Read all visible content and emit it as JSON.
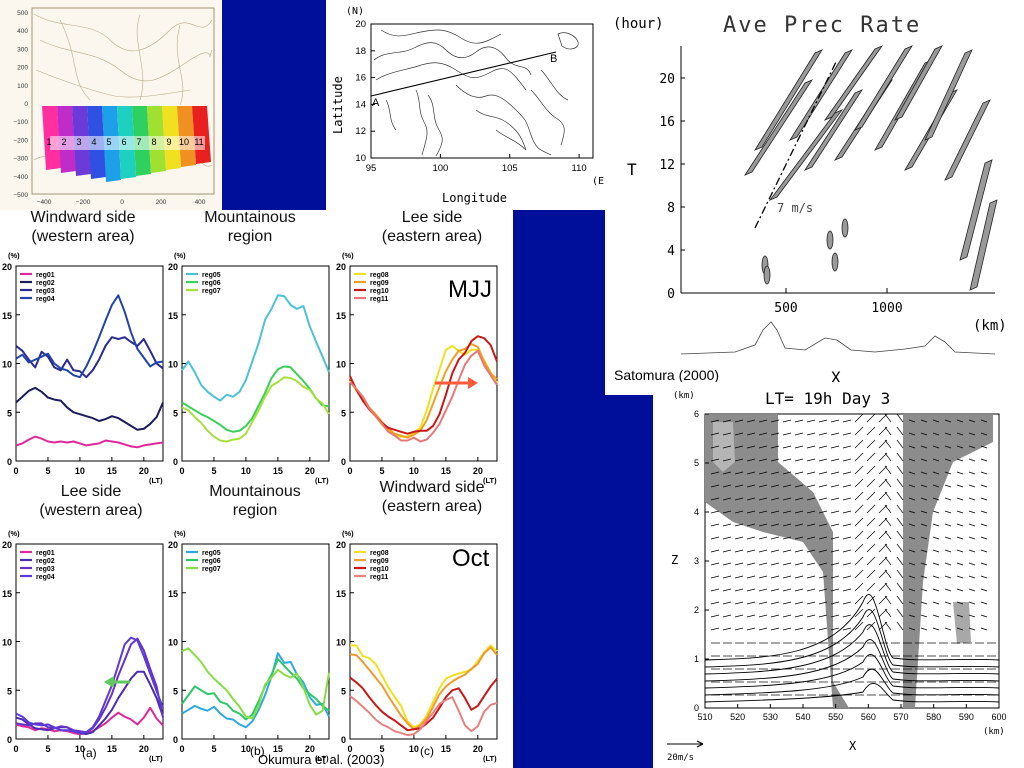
{
  "captions": {
    "row1": [
      "Windward side\n(western area)",
      "Mountainous\nregion",
      "Lee side\n(eastern area)"
    ],
    "row2": [
      "Lee side\n(western area)",
      "Mountainous\nregion",
      "Windward side\n(eastern area)"
    ],
    "season1": "MJJ",
    "season2": "Oct",
    "panel_labels": [
      "(a)",
      "(b)",
      "(c)"
    ],
    "ref_okumura": "Okumura et al. (2003)",
    "ref_satomura": "Satomura (2000)"
  },
  "colors": {
    "blue_bg": "#000f99",
    "arrow": "#ff5a3c",
    "green_arrow": "#5fc85f"
  },
  "region_map": {
    "y_ticks": [
      "500",
      "400",
      "300",
      "200",
      "100",
      "0",
      "−100",
      "−200",
      "−300",
      "−400",
      "−500"
    ],
    "x_ticks": [
      "−400",
      "−200",
      "0",
      "200",
      "400"
    ],
    "regions": [
      "1",
      "2",
      "3",
      "4",
      "5",
      "6",
      "7",
      "8",
      "9",
      "10",
      "11"
    ]
  },
  "topo_map": {
    "ylabel": "Latitude",
    "xlabel": "Longitude",
    "north": "(N)",
    "east": "(E)",
    "y_ticks": [
      "20",
      "18",
      "16",
      "14",
      "12",
      "10"
    ],
    "x_ticks": [
      "95",
      "100",
      "105",
      "110"
    ],
    "point_a": "A",
    "point_b": "B"
  },
  "hovmoller": {
    "title": "Ave Prec Rate",
    "yunit": "(hour)",
    "ylabel": "T",
    "xunit": "(km)",
    "xlabel": "X",
    "y_ticks": [
      "20",
      "16",
      "12",
      "8",
      "4",
      "0"
    ],
    "x_ticks": [
      "500",
      "1000"
    ],
    "speed": "7 m/s"
  },
  "cross_section": {
    "title": "LT= 19h Day 3",
    "yunit": "(km)",
    "ylabel": "Z",
    "xunit": "(km)",
    "xlabel": "X",
    "y_ticks": [
      "6",
      "5",
      "4",
      "3",
      "2",
      "1",
      "0"
    ],
    "x_ticks": [
      "510",
      "520",
      "530",
      "540",
      "550",
      "560",
      "570",
      "580",
      "590",
      "600"
    ],
    "vector_scale": "20m/s"
  },
  "chart_data": [
    {
      "type": "line",
      "panel": "MJJ-a",
      "ylabel": "(%)",
      "xlabel": "(LT)",
      "ylim": [
        0,
        20
      ],
      "xlim": [
        0,
        23
      ],
      "x_ticks": [
        0,
        5,
        10,
        15,
        20
      ],
      "y_ticks": [
        0,
        5,
        10,
        15,
        20
      ],
      "x": [
        0,
        1,
        2,
        3,
        4,
        5,
        6,
        7,
        8,
        9,
        10,
        11,
        12,
        13,
        14,
        15,
        16,
        17,
        18,
        19,
        20,
        21,
        22,
        23
      ],
      "series": [
        {
          "name": "reg01",
          "color": "#e0289b",
          "values": [
            1.6,
            1.8,
            2.2,
            2.5,
            2.3,
            2.0,
            1.9,
            2.0,
            1.9,
            2.0,
            1.8,
            1.6,
            1.7,
            1.8,
            2.1,
            2.0,
            1.9,
            1.7,
            1.5,
            1.4,
            1.6,
            1.7,
            1.8,
            1.9
          ]
        },
        {
          "name": "reg02",
          "color": "#1b1b5e",
          "values": [
            6.0,
            6.6,
            7.2,
            7.5,
            7.1,
            6.5,
            6.3,
            6.2,
            5.5,
            5.0,
            4.8,
            4.6,
            4.4,
            4.1,
            4.3,
            4.6,
            4.4,
            4.0,
            3.6,
            3.2,
            3.3,
            3.8,
            4.5,
            6.0
          ]
        },
        {
          "name": "reg03",
          "color": "#2a2a8f",
          "values": [
            11.8,
            11.3,
            10.4,
            9.6,
            11.2,
            10.7,
            9.6,
            9.3,
            10.4,
            9.3,
            9.2,
            8.6,
            9.3,
            10.4,
            11.8,
            12.7,
            12.5,
            12.7,
            12.2,
            11.8,
            12.5,
            11.3,
            10.0,
            9.5
          ]
        },
        {
          "name": "reg04",
          "color": "#2244aa",
          "values": [
            10.5,
            10.9,
            10.1,
            10.4,
            10.7,
            11.0,
            10.0,
            9.5,
            9.3,
            8.8,
            8.6,
            9.7,
            11.1,
            12.7,
            14.4,
            16.0,
            17.0,
            15.3,
            13.2,
            11.5,
            10.6,
            9.7,
            10.1,
            10.2
          ]
        }
      ]
    },
    {
      "type": "line",
      "panel": "MJJ-b",
      "ylabel": "(%)",
      "xlabel": "(LT)",
      "ylim": [
        0,
        20
      ],
      "xlim": [
        0,
        23
      ],
      "x_ticks": [
        0,
        5,
        10,
        15,
        20
      ],
      "y_ticks": [
        0,
        5,
        10,
        15,
        20
      ],
      "x": [
        0,
        1,
        2,
        3,
        4,
        5,
        6,
        7,
        8,
        9,
        10,
        11,
        12,
        13,
        14,
        15,
        16,
        17,
        18,
        19,
        20,
        21,
        22,
        23
      ],
      "series": [
        {
          "name": "reg05",
          "color": "#4cc2d6",
          "values": [
            9.3,
            10.2,
            9.1,
            7.8,
            7.1,
            6.6,
            6.2,
            6.8,
            6.6,
            7.1,
            8.3,
            10.2,
            12.1,
            14.5,
            15.6,
            17.0,
            16.9,
            16.0,
            15.6,
            15.9,
            13.8,
            12.2,
            10.7,
            9.1
          ]
        },
        {
          "name": "reg06",
          "color": "#3ccf5a",
          "values": [
            6.0,
            5.6,
            5.2,
            4.8,
            4.5,
            4.1,
            3.7,
            3.2,
            3.0,
            3.1,
            3.6,
            4.4,
            5.7,
            7.0,
            8.5,
            9.4,
            9.7,
            9.6,
            8.9,
            8.2,
            7.4,
            6.4,
            5.7,
            5.6
          ]
        },
        {
          "name": "reg07",
          "color": "#a8e040",
          "values": [
            5.5,
            5.2,
            4.5,
            3.9,
            3.1,
            2.5,
            2.1,
            2.0,
            2.2,
            2.3,
            2.8,
            4.0,
            5.2,
            6.6,
            7.7,
            8.1,
            8.6,
            8.5,
            8.2,
            7.6,
            7.3,
            6.4,
            5.9,
            4.8
          ]
        }
      ]
    },
    {
      "type": "line",
      "panel": "MJJ-c",
      "ylabel": "(%)",
      "xlabel": "(LT)",
      "ylim": [
        0,
        20
      ],
      "xlim": [
        0,
        23
      ],
      "x_ticks": [
        0,
        5,
        10,
        15,
        20
      ],
      "y_ticks": [
        0,
        5,
        10,
        15,
        20
      ],
      "x": [
        0,
        1,
        2,
        3,
        4,
        5,
        6,
        7,
        8,
        9,
        10,
        11,
        12,
        13,
        14,
        15,
        16,
        17,
        18,
        19,
        20,
        21,
        22,
        23
      ],
      "series": [
        {
          "name": "reg08",
          "color": "#f0e020",
          "values": [
            8.2,
            7.2,
            6.4,
            5.3,
            4.6,
            3.7,
            3.1,
            2.6,
            2.5,
            2.5,
            2.9,
            3.4,
            5.2,
            7.4,
            9.4,
            11.4,
            11.8,
            11.3,
            10.9,
            11.4,
            11.4,
            10.3,
            9.1,
            8.0
          ]
        },
        {
          "name": "reg09",
          "color": "#f0a020",
          "values": [
            8.6,
            7.3,
            6.6,
            5.5,
            4.8,
            4.0,
            3.3,
            2.8,
            2.6,
            2.4,
            2.7,
            3.1,
            4.2,
            5.9,
            7.6,
            9.2,
            10.4,
            11.3,
            11.5,
            12.0,
            11.7,
            10.2,
            9.0,
            8.4
          ]
        },
        {
          "name": "reg10",
          "color": "#c81818",
          "values": [
            8.7,
            7.3,
            6.2,
            5.3,
            4.6,
            3.9,
            3.4,
            3.2,
            3.0,
            2.8,
            3.0,
            3.1,
            3.1,
            3.6,
            4.8,
            6.8,
            9.0,
            10.4,
            11.1,
            12.3,
            12.8,
            12.6,
            11.9,
            10.2
          ]
        },
        {
          "name": "reg11",
          "color": "#e87878",
          "values": [
            8.1,
            7.4,
            6.6,
            5.4,
            4.6,
            3.8,
            3.0,
            2.6,
            2.1,
            2.1,
            2.4,
            2.0,
            2.2,
            2.9,
            3.8,
            5.2,
            6.6,
            8.3,
            9.9,
            10.8,
            11.3,
            9.8,
            8.8,
            7.8
          ]
        }
      ]
    },
    {
      "type": "line",
      "panel": "Oct-a",
      "ylabel": "(%)",
      "xlabel": "(LT)",
      "ylim": [
        0,
        20
      ],
      "xlim": [
        0,
        23
      ],
      "x_ticks": [
        0,
        5,
        10,
        15,
        20
      ],
      "y_ticks": [
        0,
        5,
        10,
        15,
        20
      ],
      "x": [
        0,
        1,
        2,
        3,
        4,
        5,
        6,
        7,
        8,
        9,
        10,
        11,
        12,
        13,
        14,
        15,
        16,
        17,
        18,
        19,
        20,
        21,
        22,
        23
      ],
      "series": [
        {
          "name": "reg01",
          "color": "#e0289b",
          "values": [
            1.5,
            1.3,
            1.2,
            0.9,
            1.1,
            1.0,
            0.8,
            0.9,
            0.8,
            0.6,
            0.5,
            0.6,
            0.8,
            1.2,
            1.6,
            2.2,
            2.7,
            2.3,
            2.0,
            1.5,
            2.2,
            3.2,
            2.1,
            1.4
          ]
        },
        {
          "name": "reg02",
          "color": "#4b2bb0",
          "values": [
            2.2,
            2.0,
            1.5,
            1.1,
            1.0,
            0.9,
            1.1,
            1.2,
            1.2,
            0.8,
            0.6,
            0.5,
            0.7,
            1.4,
            2.1,
            3.0,
            4.2,
            5.2,
            6.2,
            6.9,
            6.9,
            5.6,
            4.2,
            2.3
          ]
        },
        {
          "name": "reg03",
          "color": "#6632c8",
          "values": [
            1.6,
            1.5,
            1.4,
            1.6,
            1.6,
            1.2,
            1.1,
            1.3,
            1.2,
            0.9,
            0.8,
            0.7,
            1.1,
            2.0,
            3.2,
            4.6,
            6.5,
            8.1,
            9.7,
            10.3,
            9.1,
            7.2,
            5.4,
            2.2
          ]
        },
        {
          "name": "reg04",
          "color": "#5a3ad8",
          "values": [
            2.6,
            2.3,
            1.7,
            1.5,
            1.4,
            1.5,
            1.2,
            0.9,
            0.9,
            0.8,
            0.6,
            0.7,
            1.2,
            2.3,
            3.9,
            5.5,
            7.6,
            9.7,
            10.4,
            10.1,
            8.5,
            6.7,
            4.9,
            3.2
          ]
        }
      ]
    },
    {
      "type": "line",
      "panel": "Oct-b",
      "ylabel": "(%)",
      "xlabel": "(LT)",
      "ylim": [
        0,
        20
      ],
      "xlim": [
        0,
        23
      ],
      "x_ticks": [
        0,
        5,
        10,
        15,
        20
      ],
      "y_ticks": [
        0,
        5,
        10,
        15,
        20
      ],
      "x": [
        0,
        1,
        2,
        3,
        4,
        5,
        6,
        7,
        8,
        9,
        10,
        11,
        12,
        13,
        14,
        15,
        16,
        17,
        18,
        19,
        20,
        21,
        22,
        23
      ],
      "series": [
        {
          "name": "reg05",
          "color": "#2ea8e0",
          "values": [
            2.6,
            3.0,
            3.4,
            3.1,
            2.9,
            3.3,
            2.6,
            2.1,
            2.0,
            1.5,
            1.2,
            1.8,
            3.0,
            4.5,
            6.4,
            8.8,
            7.8,
            7.9,
            6.6,
            5.8,
            4.3,
            3.5,
            3.6,
            2.3
          ]
        },
        {
          "name": "reg06",
          "color": "#2ac86a",
          "values": [
            3.6,
            4.5,
            5.4,
            5.0,
            4.6,
            4.7,
            3.8,
            3.6,
            2.9,
            2.6,
            2.0,
            2.5,
            3.9,
            5.4,
            6.6,
            8.2,
            7.5,
            6.8,
            6.2,
            5.2,
            4.6,
            4.1,
            3.4,
            2.9
          ]
        },
        {
          "name": "reg07",
          "color": "#88dd44",
          "values": [
            9.0,
            9.3,
            8.6,
            7.9,
            6.9,
            6.2,
            5.6,
            5.0,
            4.1,
            3.3,
            2.3,
            2.1,
            3.4,
            5.6,
            6.3,
            7.1,
            6.6,
            6.3,
            6.7,
            5.3,
            3.5,
            2.5,
            2.9,
            6.8
          ]
        }
      ]
    },
    {
      "type": "line",
      "panel": "Oct-c",
      "ylabel": "(%)",
      "xlabel": "(LT)",
      "ylim": [
        0,
        20
      ],
      "xlim": [
        0,
        23
      ],
      "x_ticks": [
        0,
        5,
        10,
        15,
        20
      ],
      "y_ticks": [
        0,
        5,
        10,
        15,
        20
      ],
      "x": [
        0,
        1,
        2,
        3,
        4,
        5,
        6,
        7,
        8,
        9,
        10,
        11,
        12,
        13,
        14,
        15,
        16,
        17,
        18,
        19,
        20,
        21,
        22,
        23
      ],
      "series": [
        {
          "name": "reg08",
          "color": "#f0e020",
          "values": [
            9.6,
            9.6,
            8.5,
            8.3,
            7.7,
            6.5,
            5.3,
            4.3,
            3.4,
            1.8,
            1.2,
            1.5,
            2.4,
            3.8,
            5.2,
            6.2,
            6.5,
            6.7,
            6.9,
            7.1,
            8.0,
            8.9,
            9.6,
            9.0
          ]
        },
        {
          "name": "reg09",
          "color": "#f09a30",
          "values": [
            8.7,
            8.6,
            7.9,
            7.1,
            6.3,
            5.5,
            4.4,
            3.4,
            2.4,
            1.6,
            1.0,
            1.4,
            2.1,
            3.3,
            4.6,
            5.4,
            5.9,
            6.3,
            6.6,
            7.2,
            7.7,
            8.8,
            9.4,
            8.6
          ]
        },
        {
          "name": "reg10",
          "color": "#c81818",
          "values": [
            6.3,
            5.8,
            5.2,
            4.3,
            3.5,
            2.8,
            2.3,
            1.9,
            1.4,
            0.9,
            1.0,
            1.1,
            1.6,
            2.2,
            3.2,
            4.3,
            5.0,
            5.2,
            4.2,
            3.0,
            3.4,
            4.4,
            5.4,
            6.2
          ]
        },
        {
          "name": "reg11",
          "color": "#e88080",
          "values": [
            4.4,
            3.9,
            3.3,
            2.7,
            2.0,
            1.5,
            1.2,
            0.8,
            0.6,
            0.4,
            0.5,
            1.0,
            1.9,
            2.7,
            3.6,
            4.0,
            4.3,
            2.9,
            1.4,
            0.8,
            1.3,
            2.8,
            3.5,
            3.7
          ]
        }
      ]
    }
  ]
}
